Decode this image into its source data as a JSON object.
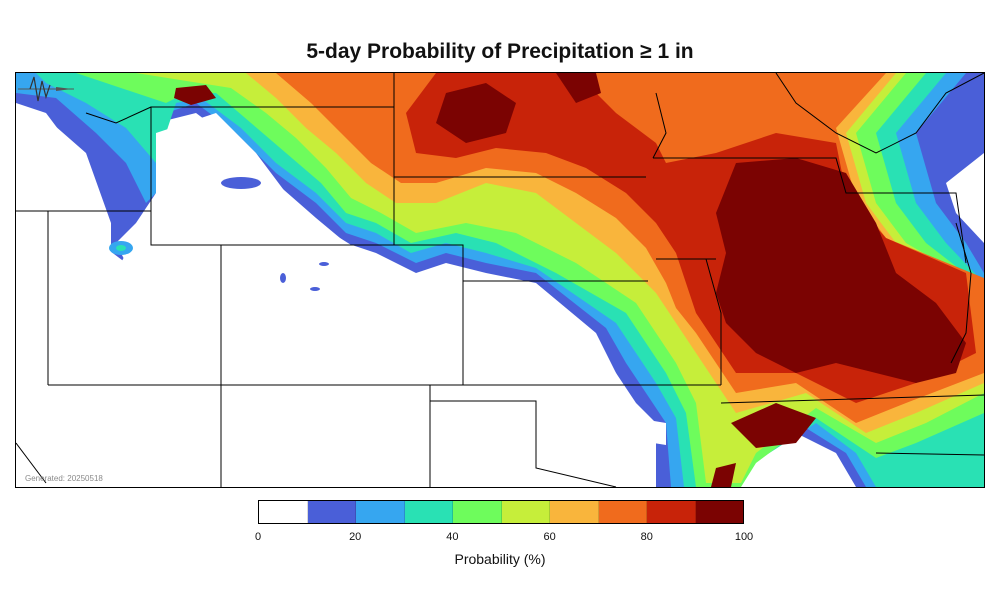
{
  "title": "5-day Probability of Precipitation ≥ 1 in",
  "generated_text": "Generated: 20250518",
  "colorbar": {
    "label": "Probability (%)",
    "tick_labels": [
      "0",
      "20",
      "40",
      "60",
      "80",
      "100"
    ],
    "bins": [
      {
        "range": "0-10",
        "color": "#ffffff"
      },
      {
        "range": "10-20",
        "color": "#4a5fd8"
      },
      {
        "range": "20-30",
        "color": "#36a6f0"
      },
      {
        "range": "30-40",
        "color": "#29e1b4"
      },
      {
        "range": "40-50",
        "color": "#6efc5c"
      },
      {
        "range": "50-60",
        "color": "#c6ee3a"
      },
      {
        "range": "60-70",
        "color": "#f9b53c"
      },
      {
        "range": "70-80",
        "color": "#f06b1d"
      },
      {
        "range": "80-90",
        "color": "#c82309"
      },
      {
        "range": "90-100",
        "color": "#7b0302"
      }
    ]
  },
  "logo_icon": "agency-logo-icon"
}
